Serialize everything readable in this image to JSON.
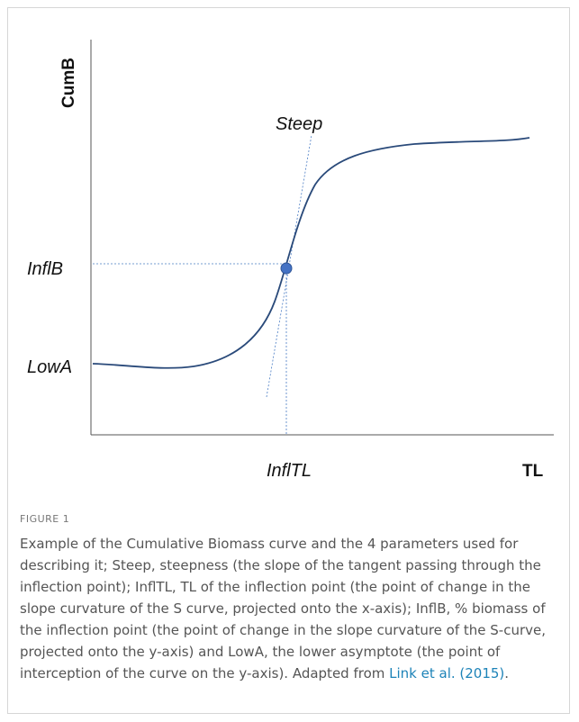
{
  "figure": {
    "labels": {
      "y_axis": "CumB",
      "x_axis": "TL",
      "steep": "Steep",
      "inflb": "InflB",
      "lowa": "LowA",
      "infltl": "InflTL"
    },
    "caption": {
      "label": "FIGURE 1",
      "text": "Example of the Cumulative Biomass curve and the 4 parameters used for describing it; Steep, steepness (the slope of the tangent passing through the inflection point); InflTL, TL of the inflection point (the point of change in the slope curvature of the S curve, projected onto the x-axis); InflB, % biomass of the inflection point (the point of change in the slope curvature of the S-curve, projected onto the y-axis) and LowA, the lower asymptote (the point of interception of the curve on the y-axis). Adapted from ",
      "link": "Link et al. (2015)",
      "end": "."
    }
  }
}
